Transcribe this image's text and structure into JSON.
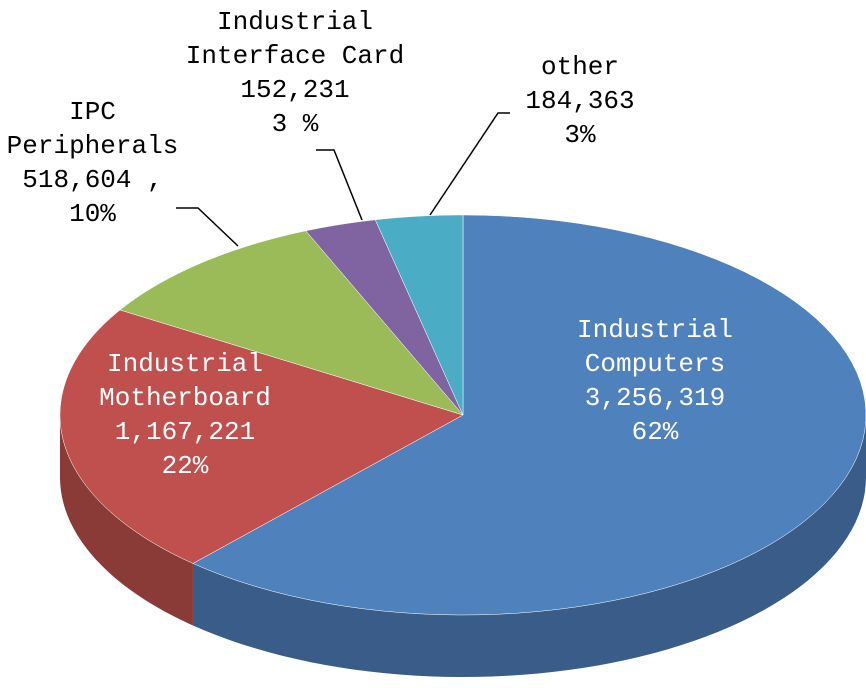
{
  "chart_data": {
    "type": "pie3d",
    "categories": [
      "Industrial Computers",
      "Industrial Motherboard",
      "IPC Peripherals",
      "Industrial Interface Card",
      "other"
    ],
    "values": [
      3256319,
      1167221,
      518604,
      152231,
      184363
    ],
    "value_labels": [
      "3,256,319",
      "1,167,221",
      "518,604 ,",
      "152,231",
      "184,363"
    ],
    "percents": [
      62,
      22,
      10,
      3,
      3
    ],
    "percent_labels": [
      "62%",
      "22%",
      "10%",
      "3 %",
      "3%"
    ],
    "colors": [
      "#4f81bd",
      "#c0504d",
      "#9bbb59",
      "#8064a2",
      "#4bacc6"
    ]
  }
}
